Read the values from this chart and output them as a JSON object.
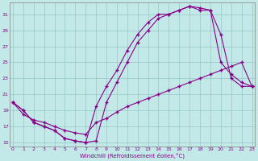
{
  "xlabel": "Windchill (Refroidissement éolien,°C)",
  "background_color": "#c2e8e8",
  "grid_color": "#96c8c8",
  "line_color": "#880088",
  "xlim": [
    -0.3,
    23.3
  ],
  "ylim": [
    14.5,
    32.5
  ],
  "yticks": [
    15,
    17,
    19,
    21,
    23,
    25,
    27,
    29,
    31
  ],
  "xticks": [
    0,
    1,
    2,
    3,
    4,
    5,
    6,
    7,
    8,
    9,
    10,
    11,
    12,
    13,
    14,
    15,
    16,
    17,
    18,
    19,
    20,
    21,
    22,
    23
  ],
  "line_a_x": [
    0,
    1,
    2,
    3,
    4,
    5,
    6,
    7,
    8,
    9,
    10,
    11,
    12,
    13,
    14,
    15,
    16,
    17,
    18,
    19,
    20,
    21,
    22,
    23
  ],
  "line_a_y": [
    20.0,
    19.0,
    17.5,
    17.0,
    16.5,
    15.5,
    15.2,
    15.0,
    15.2,
    20.0,
    22.5,
    25.0,
    27.5,
    29.0,
    30.5,
    31.0,
    31.5,
    32.0,
    31.8,
    31.5,
    25.0,
    23.5,
    22.5,
    22.0
  ],
  "line_b_x": [
    0,
    1,
    2,
    3,
    4,
    5,
    6,
    7,
    8,
    9,
    10,
    11,
    12,
    13,
    14,
    15,
    16,
    17,
    18,
    19,
    20,
    21,
    22,
    23
  ],
  "line_b_y": [
    20.0,
    19.0,
    17.5,
    17.0,
    16.5,
    15.5,
    15.2,
    15.0,
    19.5,
    22.0,
    24.0,
    26.5,
    28.5,
    30.0,
    31.0,
    31.0,
    31.5,
    32.0,
    31.5,
    31.5,
    28.5,
    23.0,
    22.0,
    22.0
  ],
  "line_c_x": [
    0,
    1,
    2,
    3,
    4,
    5,
    6,
    7,
    8,
    9,
    10,
    11,
    12,
    13,
    14,
    15,
    16,
    17,
    18,
    19,
    20,
    21,
    22,
    23
  ],
  "line_c_y": [
    20.0,
    18.5,
    17.8,
    17.5,
    17.0,
    16.5,
    16.2,
    16.0,
    17.5,
    18.0,
    18.8,
    19.5,
    20.0,
    20.5,
    21.0,
    21.5,
    22.0,
    22.5,
    23.0,
    23.5,
    24.0,
    24.5,
    25.0,
    22.0
  ]
}
